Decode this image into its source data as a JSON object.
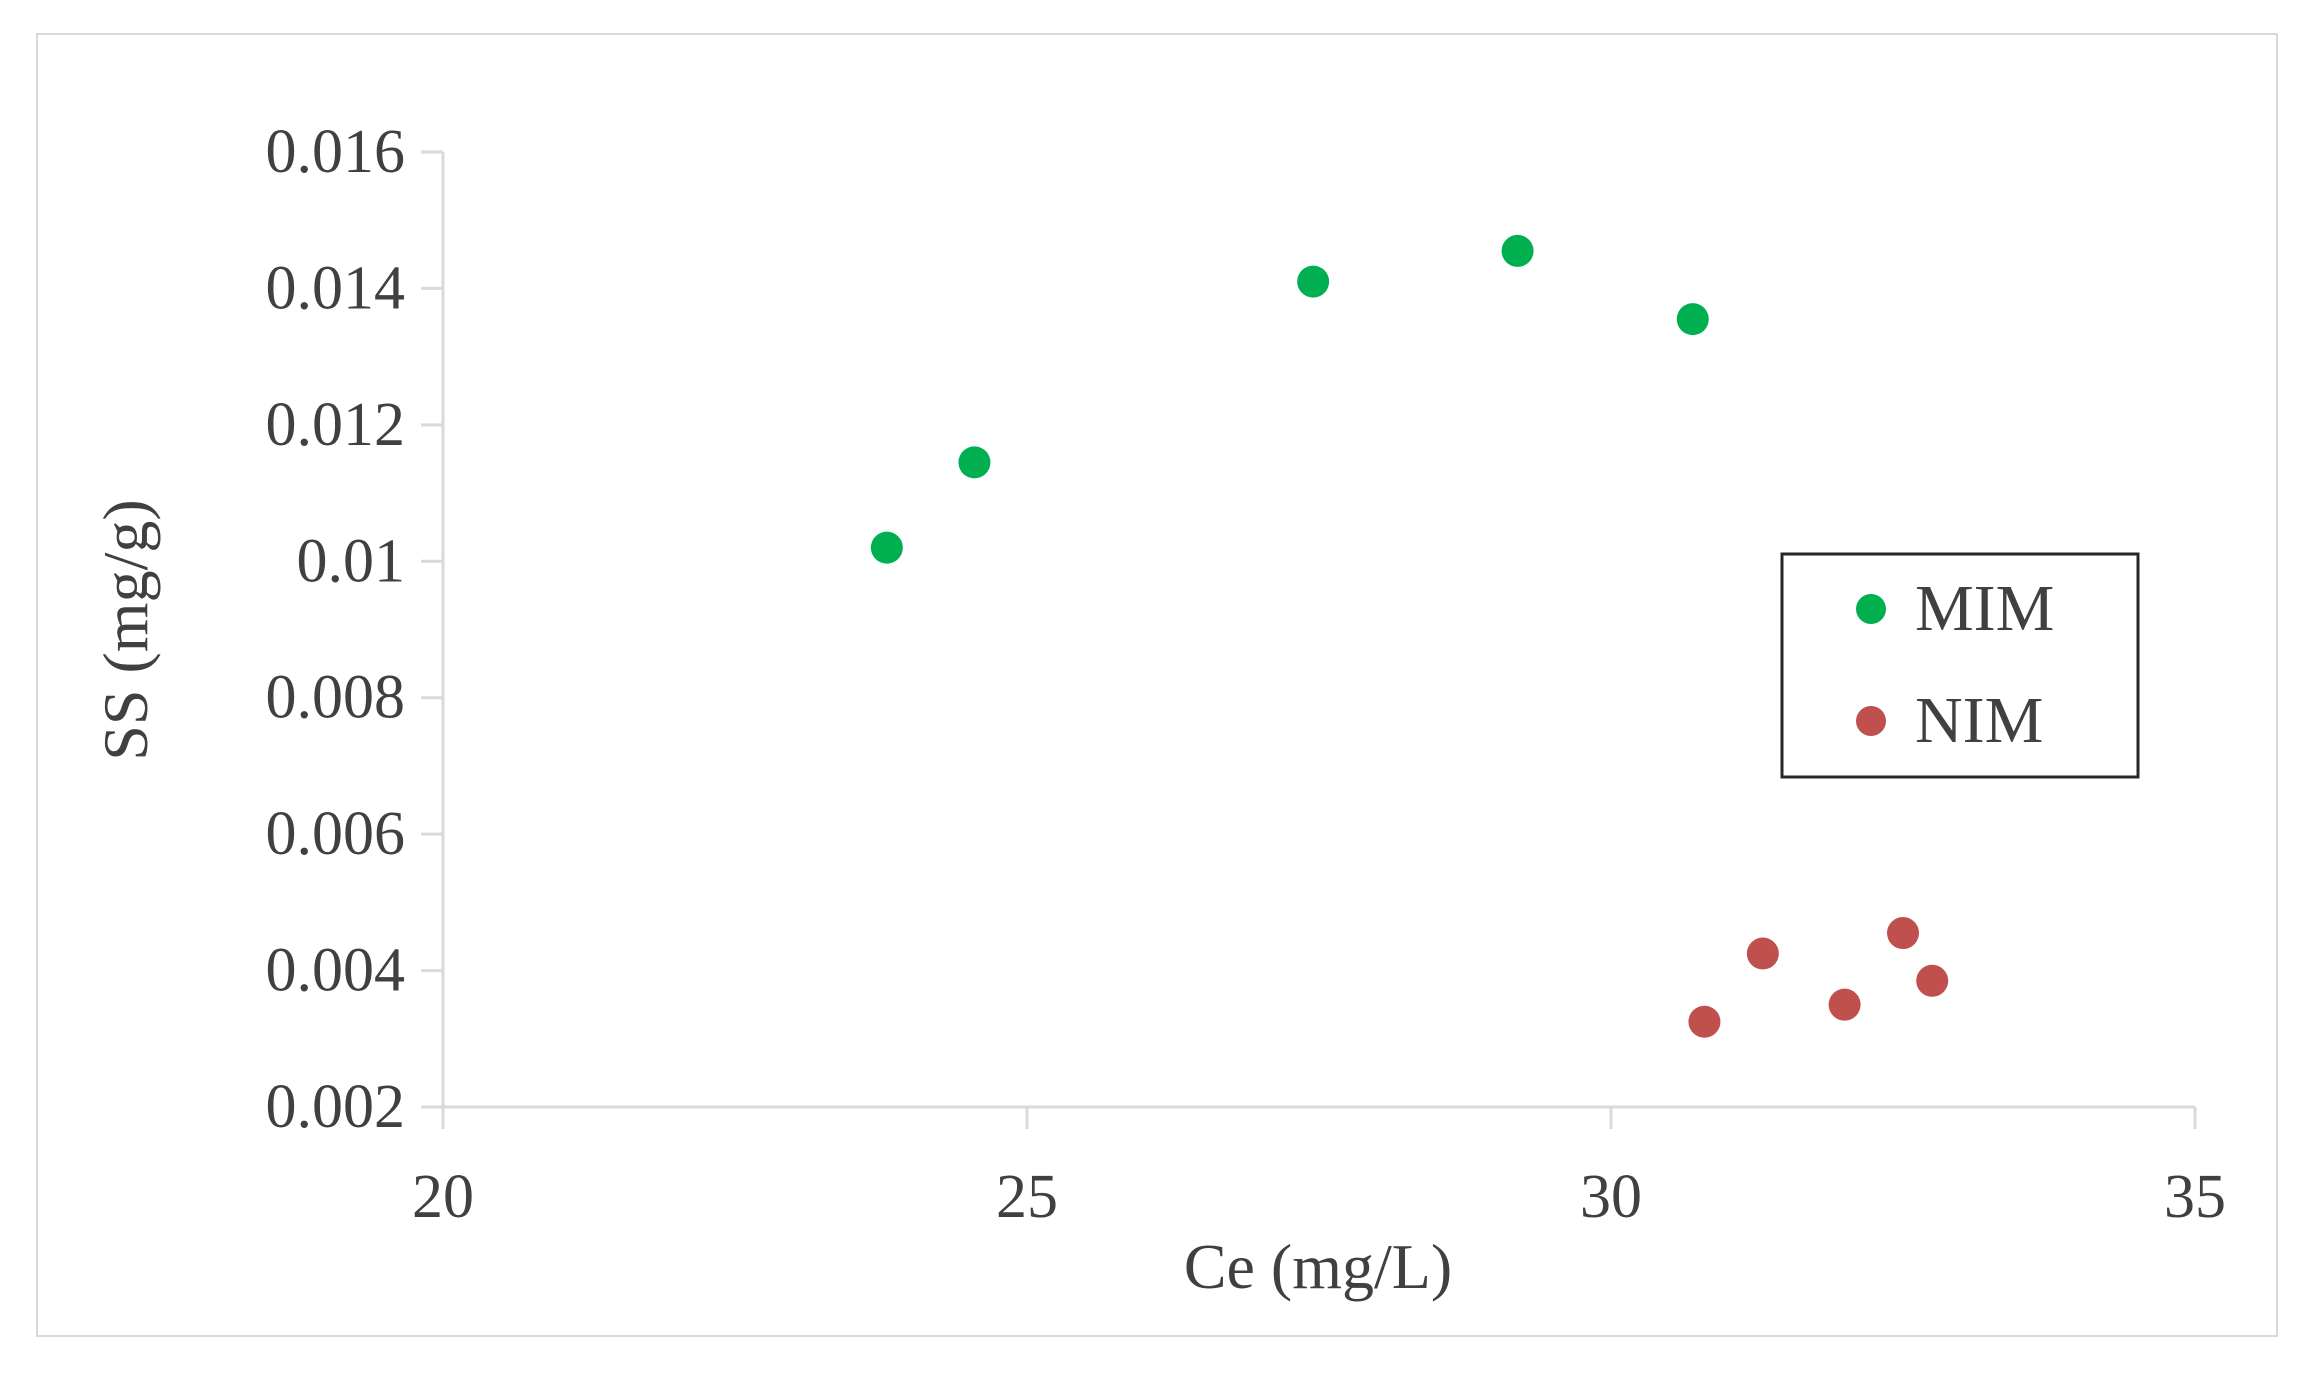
{
  "chart_data": {
    "type": "scatter",
    "xlabel": "Ce (mg/L)",
    "ylabel": "SS (mg/g)",
    "xlim": [
      20,
      35
    ],
    "ylim": [
      0.002,
      0.016
    ],
    "x_ticks": [
      "20",
      "25",
      "30",
      "35"
    ],
    "y_ticks": [
      "0.002",
      "0.004",
      "0.006",
      "0.008",
      "0.01",
      "0.012",
      "0.014",
      "0.016"
    ],
    "grid": false,
    "legend_position": "right",
    "series": [
      {
        "name": "MIM",
        "color": "#00b050",
        "points": [
          {
            "x": 23.8,
            "y": 0.0102
          },
          {
            "x": 24.55,
            "y": 0.01145
          },
          {
            "x": 27.45,
            "y": 0.0141
          },
          {
            "x": 29.2,
            "y": 0.01455
          },
          {
            "x": 30.7,
            "y": 0.01355
          }
        ]
      },
      {
        "name": "NIM",
        "color": "#c0504d",
        "points": [
          {
            "x": 30.8,
            "y": 0.00325
          },
          {
            "x": 31.3,
            "y": 0.00425
          },
          {
            "x": 32.0,
            "y": 0.0035
          },
          {
            "x": 32.5,
            "y": 0.00455
          },
          {
            "x": 32.75,
            "y": 0.00385
          }
        ]
      }
    ]
  }
}
